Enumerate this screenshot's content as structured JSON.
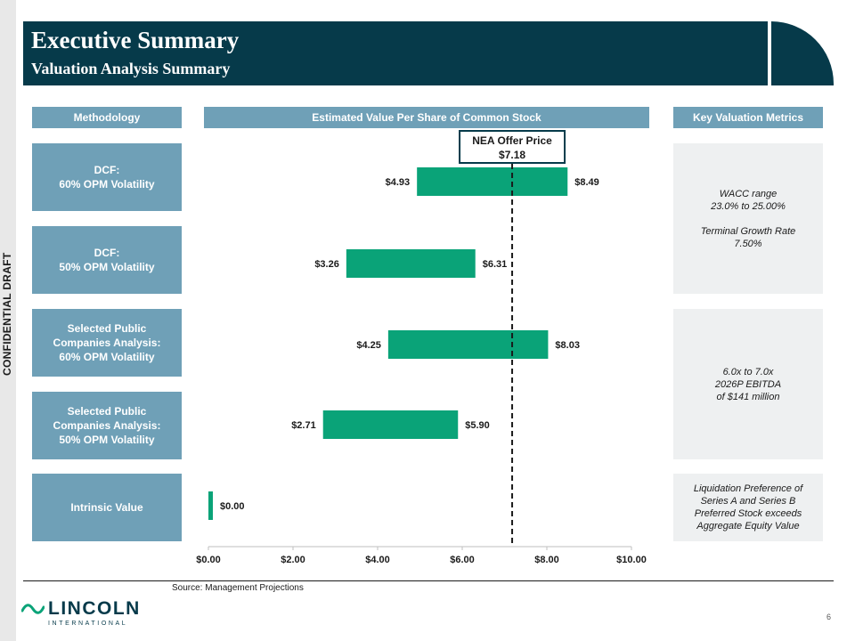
{
  "side_label": "CONFIDENTIAL DRAFT",
  "header": {
    "title": "Executive Summary",
    "subtitle": "Valuation Analysis Summary"
  },
  "columns": {
    "methodology": "Methodology",
    "chart": "Estimated Value Per Share of Common Stock",
    "metrics": "Key Valuation Metrics"
  },
  "methods": [
    "DCF:\n60% OPM Volatility",
    "DCF:\n50% OPM Volatility",
    "Selected Public\nCompanies Analysis:\n60% OPM Volatility",
    "Selected Public\nCompanies Analysis:\n50% OPM Volatility",
    "Intrinsic Value"
  ],
  "metrics": [
    "WACC range\n23.0% to 25.00%\n\nTerminal Growth Rate\n7.50%",
    "6.0x to 7.0x\n2026P EBITDA\nof $141 million",
    "Liquidation Preference of\nSeries A and Series B\nPreferred Stock exceeds\nAggregate Equity Value"
  ],
  "chart_data": {
    "type": "bar",
    "subtype": "floating-range",
    "title": "Estimated Value Per Share of Common Stock",
    "categories": [
      "DCF: 60% OPM Volatility",
      "DCF: 50% OPM Volatility",
      "Selected Public Companies Analysis: 60% OPM Volatility",
      "Selected Public Companies Analysis: 50% OPM Volatility",
      "Intrinsic Value"
    ],
    "series": [
      {
        "name": "Low",
        "values": [
          4.93,
          3.26,
          4.25,
          2.71,
          0.0
        ]
      },
      {
        "name": "High",
        "values": [
          8.49,
          6.31,
          8.03,
          5.9,
          0.0
        ]
      }
    ],
    "low_labels": [
      "$4.93",
      "$3.26",
      "$4.25",
      "$2.71",
      ""
    ],
    "high_labels": [
      "$8.49",
      "$6.31",
      "$8.03",
      "$5.90",
      "$0.00"
    ],
    "xlim": [
      0,
      10
    ],
    "xticks": [
      0,
      2,
      4,
      6,
      8,
      10
    ],
    "xtick_labels": [
      "$0.00",
      "$2.00",
      "$4.00",
      "$6.00",
      "$8.00",
      "$10.00"
    ],
    "reference_line": {
      "value": 7.18,
      "label": "NEA Offer Price",
      "value_label": "$7.18",
      "style": "dashed"
    },
    "bar_color": "#0aa378",
    "xlabel": "",
    "ylabel": ""
  },
  "footer": {
    "source": "Source: Management Projections",
    "page_number": "6"
  },
  "logo": {
    "name": "LINCOLN",
    "sub": "INTERNATIONAL"
  },
  "colors": {
    "header": "#063a4a",
    "box": "#6fa0b7",
    "metric_box": "#eef0f1",
    "bar": "#0aa378"
  }
}
